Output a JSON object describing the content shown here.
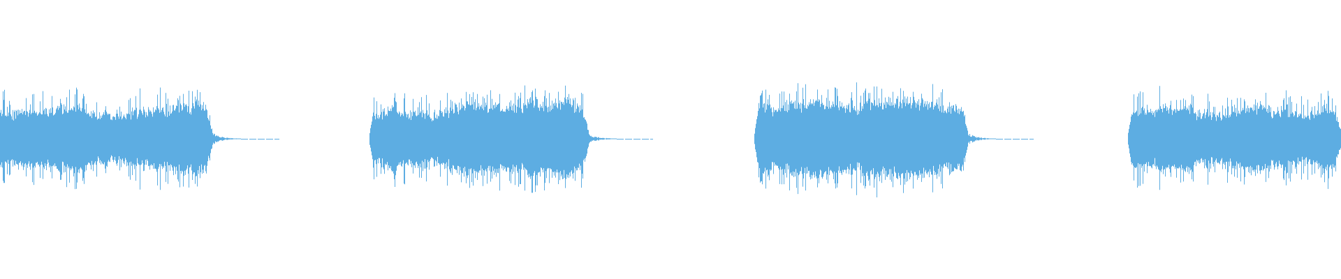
{
  "waveform": {
    "color": "#5dade2",
    "background": "#ffffff",
    "clip_count": 4
  }
}
